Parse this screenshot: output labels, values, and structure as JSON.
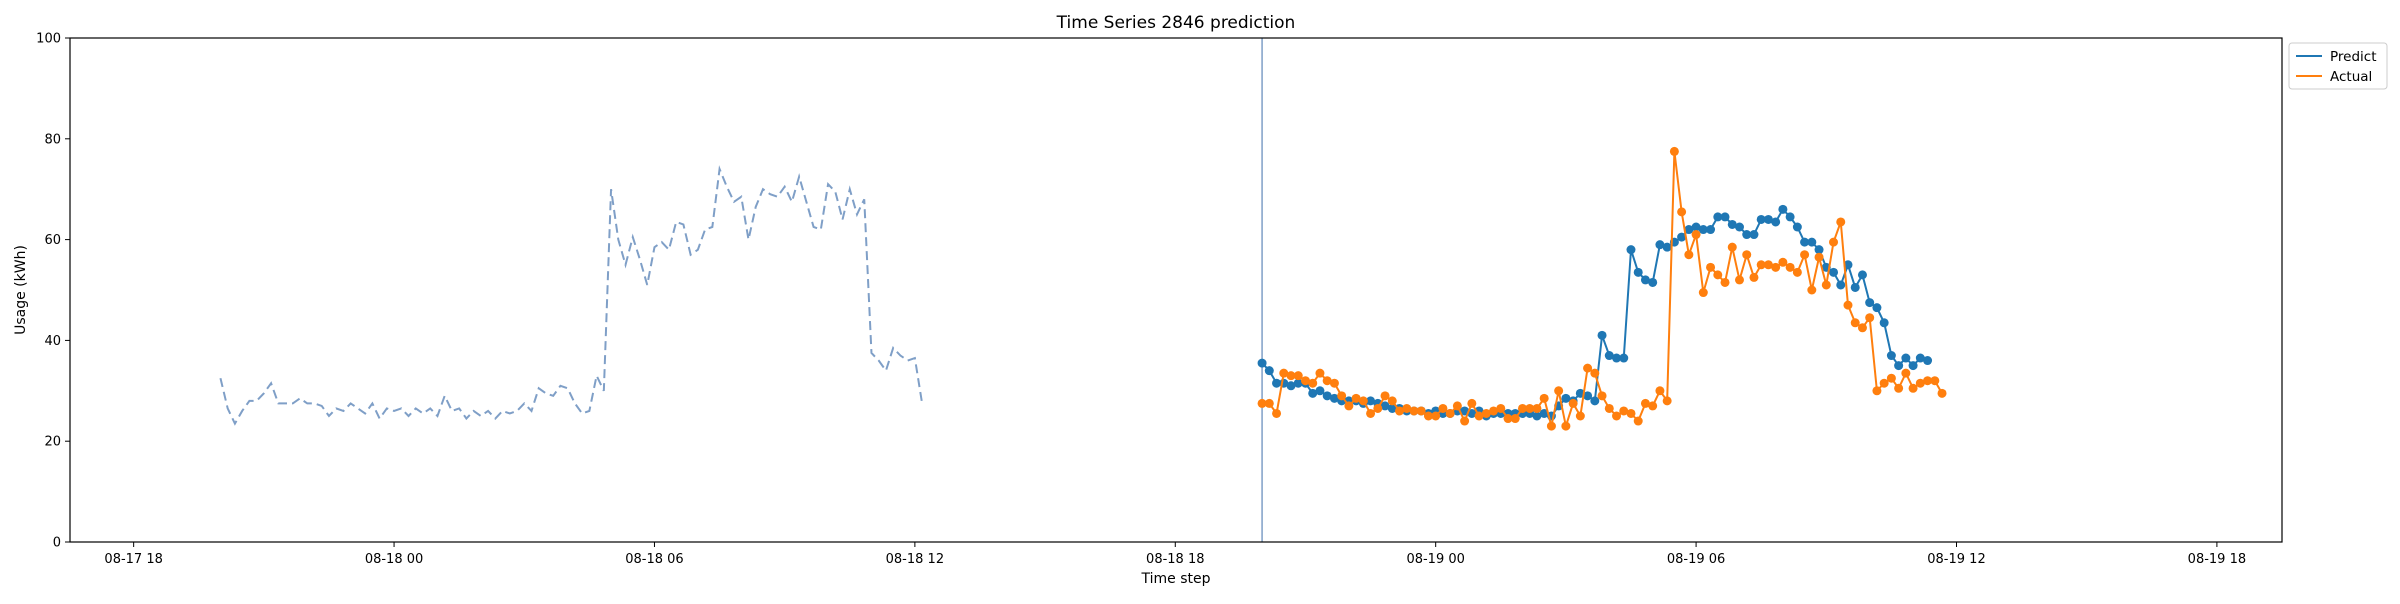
{
  "chart_data": {
    "type": "line",
    "title": "Time Series 2846 prediction",
    "xlabel": "Time step",
    "ylabel": "Usage (kWh)",
    "ylim": [
      0,
      100
    ],
    "yticks": [
      "0",
      "20",
      "40",
      "60",
      "80",
      "100"
    ],
    "xlim": [
      -8.8,
      257
    ],
    "xticks": [
      {
        "x": 0,
        "label": "08-17 18"
      },
      {
        "x": 36,
        "label": "08-18 00"
      },
      {
        "x": 72,
        "label": "08-18 06"
      },
      {
        "x": 108,
        "label": "08-18 12"
      },
      {
        "x": 144,
        "label": "08-18 18"
      },
      {
        "x": 180,
        "label": "08-19 00"
      },
      {
        "x": 216,
        "label": "08-19 06"
      },
      {
        "x": 252,
        "label": "08-19 12"
      },
      {
        "x": 288,
        "label": "08-19 18"
      }
    ],
    "forecast_start": 156,
    "grid": false,
    "legend_position": "upper-right-outside",
    "history": {
      "start": 12,
      "color": "#7f9fc7",
      "values": [
        32.5,
        26.5,
        23.5,
        26,
        28,
        28,
        29.5,
        31.5,
        27.5,
        27.5,
        27.5,
        28.5,
        27.5,
        27.5,
        27,
        25,
        26.5,
        26,
        27.5,
        26.5,
        25.5,
        27.5,
        24.5,
        26.5,
        26,
        26.5,
        25,
        26.5,
        25.5,
        26.5,
        25,
        29,
        26,
        26.5,
        24.5,
        26,
        25,
        26,
        24.5,
        26,
        25.5,
        26,
        27.5,
        26,
        30.5,
        29.5,
        29,
        31,
        30.5,
        27.5,
        25.5,
        26,
        33,
        30,
        70,
        60,
        55,
        60.5,
        56,
        51,
        58.5,
        59.5,
        58,
        63.5,
        63,
        57,
        58,
        62,
        62.5,
        74,
        70.5,
        67.5,
        68.5,
        60,
        66.5,
        70,
        69,
        68.5,
        70.5,
        67.5,
        72.5,
        67.5,
        62.5,
        62,
        71,
        69.5,
        64,
        70,
        65,
        68,
        37.5,
        36,
        34,
        38.5,
        37,
        36,
        36.5,
        27.5
      ]
    },
    "series": [
      {
        "name": "Predict",
        "color": "#1f77b4",
        "start": 156,
        "values": [
          35.5,
          34,
          31.5,
          31.5,
          31,
          31.5,
          31.5,
          29.5,
          30,
          29,
          28.5,
          28,
          28,
          28,
          27.5,
          28,
          27.5,
          27,
          26.5,
          26.5,
          26,
          26,
          26,
          25.5,
          26,
          25.5,
          25.5,
          26,
          26,
          25.5,
          26,
          25,
          25.5,
          25.5,
          25.5,
          25.5,
          25.5,
          25.5,
          25,
          25.5,
          25,
          27,
          28.5,
          28,
          29.5,
          29,
          28,
          41,
          37,
          36.5,
          36.5,
          58,
          53.5,
          52,
          51.5,
          59,
          58.5,
          59.5,
          60.5,
          62,
          62.5,
          62,
          62,
          64.5,
          64.5,
          63,
          62.5,
          61,
          61,
          64,
          64,
          63.5,
          66,
          64.5,
          62.5,
          59.5,
          59.5,
          58,
          54.5,
          53.5,
          51,
          55,
          50.5,
          53,
          47.5,
          46.5,
          43.5,
          37,
          35,
          36.5,
          35,
          36.5,
          36
        ]
      },
      {
        "name": "Actual",
        "color": "#ff7f0e",
        "start": 156,
        "values": [
          27.5,
          27.5,
          25.5,
          33.5,
          33,
          33,
          32,
          31.5,
          33.5,
          32,
          31.5,
          29,
          27,
          28.5,
          28,
          25.5,
          26.5,
          29,
          28,
          26,
          26.5,
          26,
          26,
          25,
          25,
          26.5,
          25.5,
          27,
          24,
          27.5,
          25,
          25.5,
          26,
          26.5,
          24.5,
          24.5,
          26.5,
          26.5,
          26.5,
          28.5,
          23,
          30,
          23,
          27.5,
          25,
          34.5,
          33.5,
          29,
          26.5,
          25,
          26,
          25.5,
          24,
          27.5,
          27,
          30,
          28,
          77.5,
          65.5,
          57,
          61,
          49.5,
          54.5,
          53,
          51.5,
          58.5,
          52,
          57,
          52.5,
          55,
          55,
          54.5,
          55.5,
          54.5,
          53.5,
          57,
          50,
          56.5,
          51,
          59.5,
          63.5,
          47,
          43.5,
          42.5,
          44.5,
          30,
          31.5,
          32.5,
          30.5,
          33.5,
          30.5,
          31.5,
          32,
          32,
          29.5
        ]
      }
    ]
  }
}
